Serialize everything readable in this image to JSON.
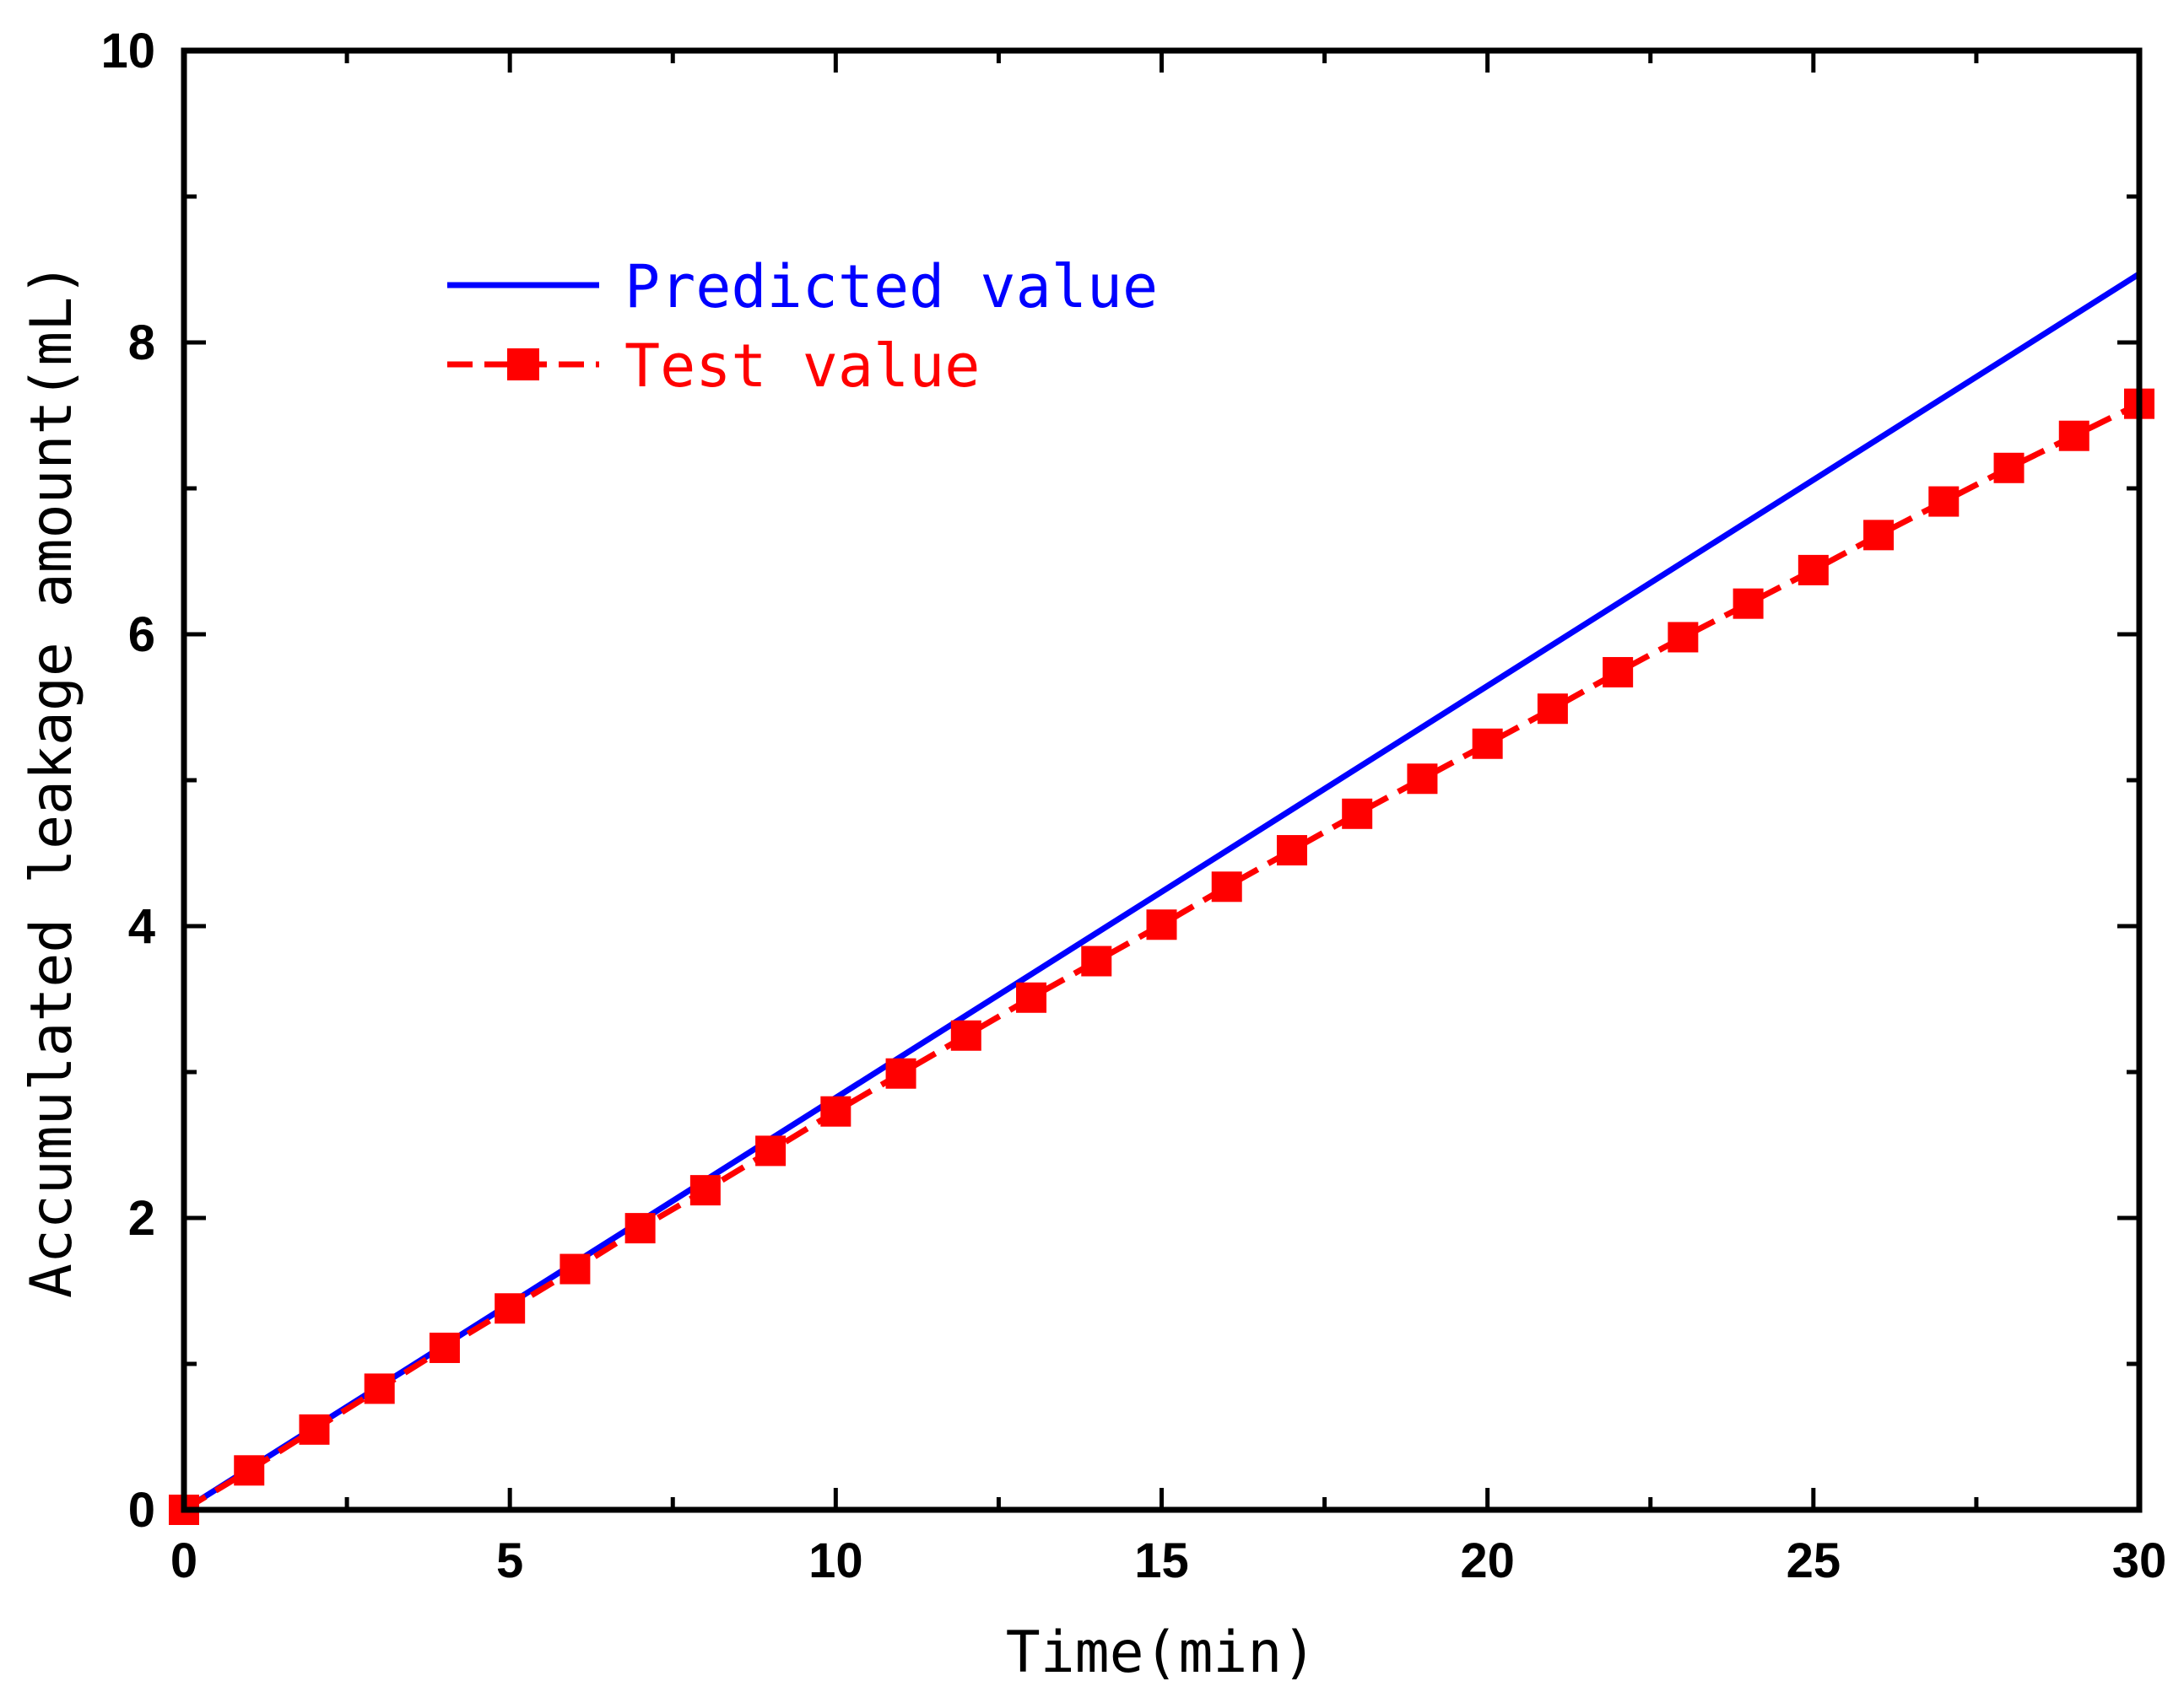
{
  "chart_data": {
    "type": "line",
    "title": "",
    "xlabel": "Time(min)",
    "ylabel": "Accumulated leakage amount(mL)",
    "xlim": [
      0,
      30
    ],
    "ylim": [
      0,
      10
    ],
    "x_major_ticks": [
      0,
      5,
      10,
      15,
      20,
      25,
      30
    ],
    "x_tick_labels": [
      "0",
      "5",
      "10",
      "15",
      "20",
      "25",
      "30"
    ],
    "x_minor_ticks": [
      2.5,
      7.5,
      12.5,
      17.5,
      22.5,
      27.5
    ],
    "y_major_ticks": [
      0,
      2,
      4,
      6,
      8,
      10
    ],
    "y_tick_labels": [
      "0",
      "2",
      "4",
      "6",
      "8",
      "10"
    ],
    "y_minor_ticks": [
      1,
      3,
      5,
      7,
      9
    ],
    "grid": false,
    "legend_position": "top-left",
    "series": [
      {
        "name": "Predicted value",
        "color": "#0000ff",
        "style": "solid-line",
        "x": [
          0,
          30
        ],
        "y": [
          0,
          8.47
        ]
      },
      {
        "name": "Test value",
        "color": "#ff0000",
        "style": "dashed-line-square-markers",
        "x": [
          0,
          1,
          2,
          3,
          4,
          5,
          6,
          7,
          8,
          9,
          10,
          11,
          12,
          13,
          14,
          15,
          16,
          17,
          18,
          19,
          20,
          21,
          22,
          23,
          24,
          25,
          26,
          27,
          28,
          29,
          30
        ],
        "y": [
          0,
          0.27,
          0.55,
          0.83,
          1.11,
          1.38,
          1.65,
          1.93,
          2.19,
          2.46,
          2.73,
          2.99,
          3.25,
          3.51,
          3.76,
          4.01,
          4.27,
          4.52,
          4.77,
          5.01,
          5.25,
          5.49,
          5.74,
          5.98,
          6.21,
          6.44,
          6.68,
          6.91,
          7.14,
          7.36,
          7.58
        ]
      }
    ]
  }
}
